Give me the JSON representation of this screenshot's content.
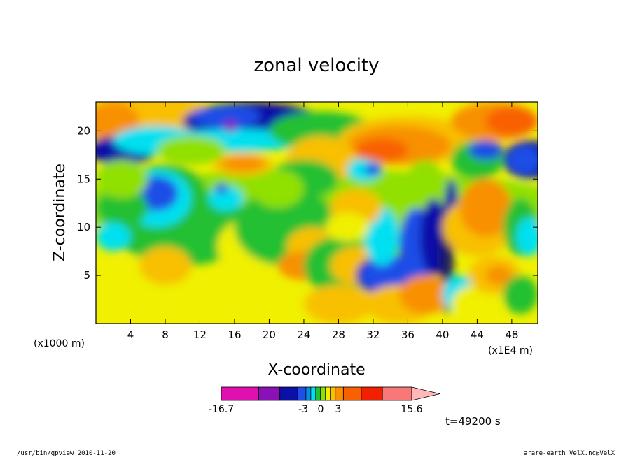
{
  "chart_data": {
    "type": "heatmap",
    "title": "zonal velocity",
    "xlabel": "X-coordinate",
    "ylabel": "Z-coordinate",
    "x_unit_left": "(x1000 m)",
    "x_unit_right": "(x1E4 m)",
    "xlim": [
      0,
      51
    ],
    "ylim": [
      0,
      23
    ],
    "x_ticks": [
      4,
      8,
      12,
      16,
      20,
      24,
      28,
      32,
      36,
      40,
      44,
      48
    ],
    "x_tick_labels": [
      "4",
      "8",
      "12",
      "16",
      "20",
      "24",
      "28",
      "32",
      "36",
      "40",
      "44",
      "48"
    ],
    "y_ticks": [
      5,
      10,
      15,
      20
    ],
    "y_tick_labels": [
      "5",
      "10",
      "15",
      "20"
    ],
    "colorbar": {
      "colors": [
        "#e010b0",
        "#8a10b8",
        "#0a10a8",
        "#1e4ee6",
        "#0090e8",
        "#00e0f0",
        "#20c030",
        "#90e000",
        "#f0f000",
        "#f8c000",
        "#f89000",
        "#f86000",
        "#f02000",
        "#f87878",
        "#ffb8b8"
      ],
      "min_label": "-16.7",
      "max_label": "15.6",
      "labels": [
        "-3",
        "0",
        "3"
      ]
    },
    "time_label": "t=49200 s",
    "footer_left": "/usr/bin/gpview   2010-11-20",
    "footer_right": "arare-earth_VelX.nc@VelX",
    "field_levels": [
      -16.7,
      -12,
      -8,
      -5,
      -3,
      -2,
      -1,
      0,
      1,
      2,
      3,
      5,
      8,
      12,
      15.6
    ]
  }
}
